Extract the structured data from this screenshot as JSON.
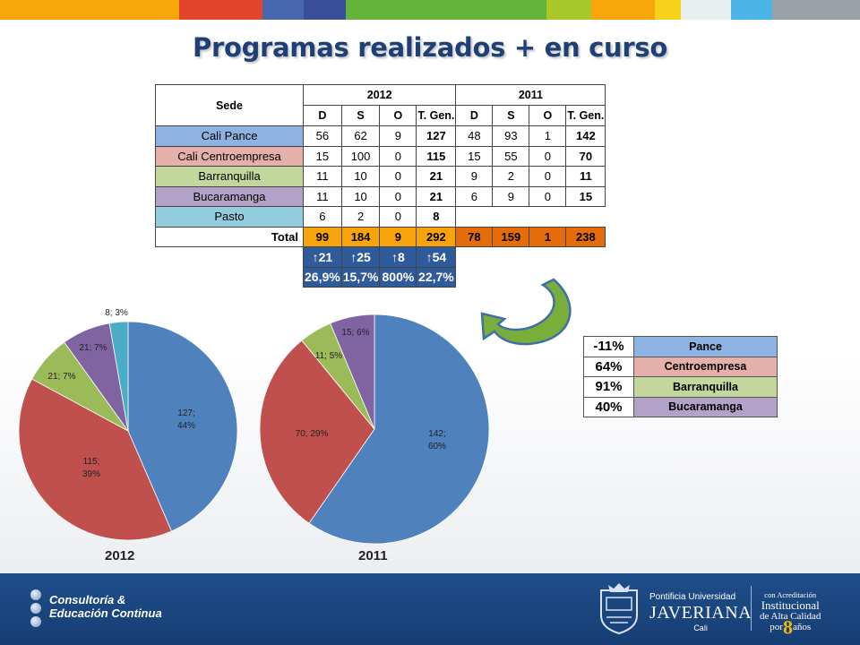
{
  "title": "Programas realizados + en curso",
  "top_bar_colors": [
    "#f7a60b",
    "#f7a60b",
    "#e2452a",
    "#4666b0",
    "#3a4e9c",
    "#63b33c",
    "#63b33c",
    "#a7c828",
    "#f7a60b",
    "#f7d21b",
    "#e9eef0",
    "#4ab5e6",
    "#9aa2a8",
    "#9aa2a8"
  ],
  "table": {
    "sede_header": "Sede",
    "year_headers": [
      "2012",
      "2011"
    ],
    "sub_headers": [
      "D",
      "S",
      "O",
      "T. Gen.",
      "D",
      "S",
      "O",
      "T. Gen."
    ],
    "rows": [
      {
        "sede": "Cali Pance",
        "color": "#8db3e2",
        "y2012": [
          "56",
          "62",
          "9",
          "127"
        ],
        "y2011": [
          "48",
          "93",
          "1",
          "142"
        ]
      },
      {
        "sede": "Cali Centroempresa",
        "color": "#e6b0aa",
        "y2012": [
          "15",
          "100",
          "0",
          "115"
        ],
        "y2011": [
          "15",
          "55",
          "0",
          "70"
        ]
      },
      {
        "sede": "Barranquilla",
        "color": "#c3d69b",
        "y2012": [
          "11",
          "10",
          "0",
          "21"
        ],
        "y2011": [
          "9",
          "2",
          "0",
          "11"
        ]
      },
      {
        "sede": "Bucaramanga",
        "color": "#b3a2c7",
        "y2012": [
          "11",
          "10",
          "0",
          "21"
        ],
        "y2011": [
          "6",
          "9",
          "0",
          "15"
        ]
      },
      {
        "sede": "Pasto",
        "color": "#93cddd",
        "y2012": [
          "6",
          "2",
          "0",
          "8"
        ],
        "y2011": [
          "",
          "",
          "",
          ""
        ]
      }
    ],
    "total_label": "Total",
    "total_2012": [
      "99",
      "184",
      "9",
      "292"
    ],
    "total_2011": [
      "78",
      "159",
      "1",
      "238"
    ],
    "change_abs": [
      "↑21",
      "↑25",
      "↑8",
      "↑54"
    ],
    "change_pct": [
      "26,9%",
      "15,7%",
      "800%",
      "22,7%"
    ]
  },
  "legend": [
    {
      "pct": "-11%",
      "name": "Pance",
      "color": "#8db3e2"
    },
    {
      "pct": "64%",
      "name": "Centroempresa",
      "color": "#e6b0aa"
    },
    {
      "pct": "91%",
      "name": "Barranquilla",
      "color": "#c3d69b"
    },
    {
      "pct": "40%",
      "name": "Bucaramanga",
      "color": "#b3a2c7"
    }
  ],
  "chart_data": [
    {
      "type": "pie",
      "title": "2012",
      "colors": [
        "#4f81bd",
        "#c0504d",
        "#9bbb59",
        "#8064a2",
        "#4bacc6"
      ],
      "values": [
        127,
        115,
        21,
        21,
        8
      ],
      "data_labels": [
        "127;\n44%",
        "115;\n39%",
        "21; 7%",
        "21; 7%",
        "8; 3%"
      ]
    },
    {
      "type": "pie",
      "title": "2011",
      "colors": [
        "#4f81bd",
        "#c0504d",
        "#9bbb59",
        "#8064a2"
      ],
      "values": [
        142,
        70,
        11,
        15
      ],
      "data_labels": [
        "142;\n60%",
        "70; 29%",
        "11; 5%",
        "15; 6%"
      ]
    }
  ],
  "footer": {
    "brand_line1": "Consultoría &",
    "brand_line2": "Educación Continua",
    "univ_line1": "Pontificia Universidad",
    "univ_line2": "JAVERIANA",
    "univ_line3": "Cali",
    "accred_line1": "con Acreditación",
    "accred_line2": "Institucional",
    "accred_line3": "de Alta Calidad",
    "accred_line4_pre": "por",
    "accred_number": "8",
    "accred_line4_post": "años"
  }
}
